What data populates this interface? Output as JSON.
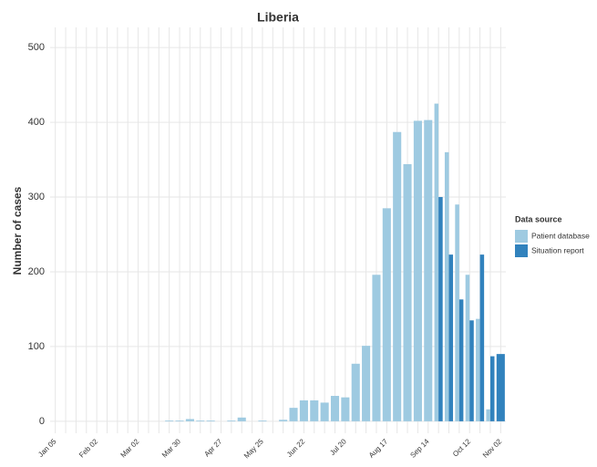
{
  "chart_data": {
    "type": "bar",
    "title": "Liberia",
    "y_label": "Number of cases",
    "categories": [
      "Jan 05",
      null,
      null,
      null,
      "Feb 02",
      null,
      null,
      null,
      "Mar 02",
      null,
      null,
      null,
      "Mar 30",
      null,
      null,
      null,
      "Apr 27",
      null,
      null,
      null,
      "May 25",
      null,
      null,
      null,
      "Jun 22",
      null,
      null,
      null,
      "Jul 20",
      null,
      null,
      null,
      "Aug 17",
      null,
      null,
      null,
      "Sep 14",
      null,
      null,
      null,
      "Oct 12",
      null,
      null,
      "Nov 02"
    ],
    "series": [
      {
        "name": "Patient database",
        "color": "#9ecae1",
        "values": [
          0,
          0,
          0,
          0,
          0,
          0,
          0,
          0,
          0,
          0,
          0,
          1,
          1,
          3,
          1,
          1,
          0,
          1,
          5,
          0,
          1,
          0,
          2,
          18,
          28,
          28,
          25,
          34,
          32,
          77,
          101,
          196,
          285,
          387,
          344,
          402,
          403,
          425,
          360,
          290,
          196,
          137,
          16,
          null
        ]
      },
      {
        "name": "Situation report",
        "color": "#3182bd",
        "values": [
          null,
          null,
          null,
          null,
          null,
          null,
          null,
          null,
          null,
          null,
          null,
          null,
          null,
          null,
          null,
          null,
          null,
          null,
          null,
          null,
          null,
          null,
          null,
          null,
          null,
          null,
          null,
          null,
          null,
          null,
          null,
          null,
          null,
          null,
          null,
          null,
          null,
          300,
          223,
          163,
          135,
          223,
          87,
          90
        ]
      }
    ],
    "legend_title": "Data source",
    "ylim": [
      -16,
      527
    ],
    "yticks": [
      0,
      100,
      200,
      300,
      400,
      500
    ],
    "grid": true
  }
}
